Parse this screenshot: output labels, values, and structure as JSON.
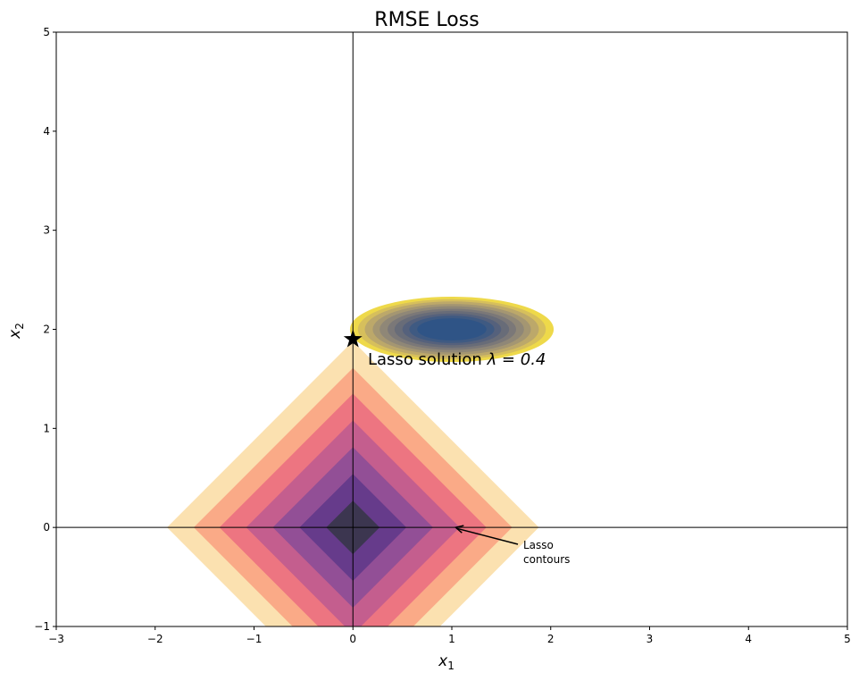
{
  "chart_data": {
    "type": "contour",
    "title": "RMSE Loss",
    "xlabel": "x",
    "xlabel_sub": "1",
    "ylabel": "x",
    "ylabel_sub": "2",
    "xlim": [
      -3,
      5
    ],
    "ylim": [
      -1,
      5
    ],
    "xticks": [
      -3,
      -2,
      -1,
      0,
      1,
      2,
      3,
      4,
      5
    ],
    "yticks": [
      -1,
      0,
      1,
      2,
      3,
      4,
      5
    ],
    "grid": false,
    "axis_lines": {
      "x": 0,
      "y": 0
    },
    "lasso_contours": {
      "levels": [
        0.27,
        0.54,
        0.81,
        1.08,
        1.35,
        1.61,
        1.88
      ],
      "colors": [
        "#3c3650",
        "#663b8b",
        "#924f96",
        "#c45e8e",
        "#ed7581",
        "#faaa87",
        "#fbe1b0"
      ]
    },
    "rmse_contours": {
      "center": [
        1,
        2
      ],
      "semi_axis_x": [
        0.35,
        0.43,
        0.5,
        0.58,
        0.65,
        0.73,
        0.8,
        0.88,
        0.95,
        1.03
      ],
      "axis_ratio": 0.32,
      "colors": [
        "#2f5486",
        "#3f5a82",
        "#55617c",
        "#686c78",
        "#7b7878",
        "#8f8777",
        "#a49672",
        "#bca86a",
        "#d6bf5c",
        "#eed94a"
      ]
    },
    "solution": {
      "x": 0,
      "y": 1.9,
      "marker": "star",
      "label": "Lasso solution",
      "lambda_text": "λ = 0.4"
    },
    "annotation": {
      "text_line1": "Lasso",
      "text_line2": "contours",
      "arrow_to": [
        1.03,
        0
      ],
      "text_at": [
        1.72,
        -0.2
      ]
    }
  }
}
